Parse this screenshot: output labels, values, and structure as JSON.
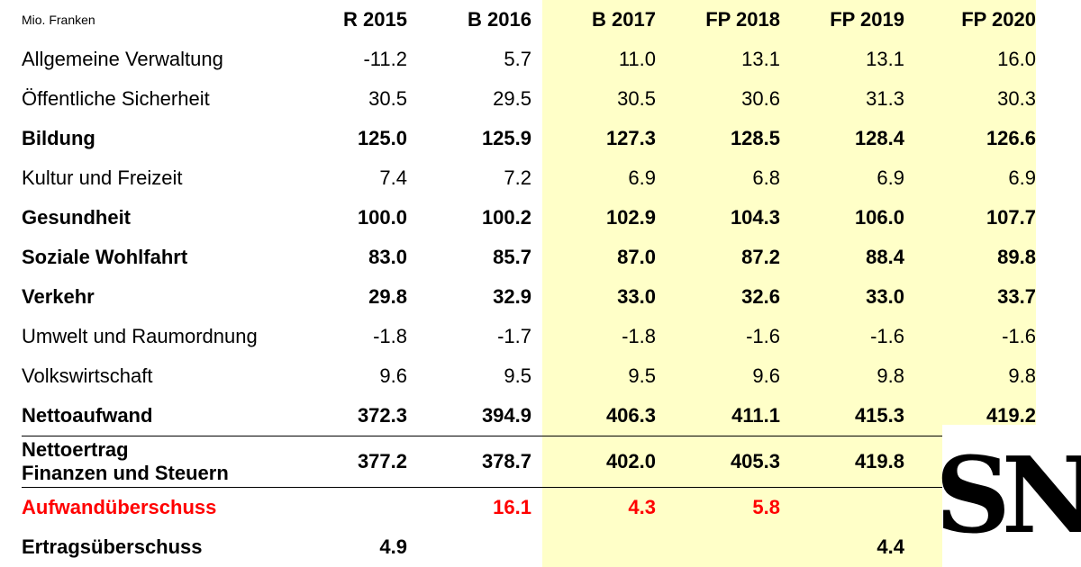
{
  "header": {
    "unit": "Mio. Franken",
    "years": [
      "R 2015",
      "B 2016",
      "B 2017",
      "FP 2018",
      "FP 2019",
      "FP 2020"
    ]
  },
  "rows": [
    {
      "label": "Allgemeine Verwaltung",
      "values": [
        "-11.2",
        "5.7",
        "11.0",
        "13.1",
        "13.1",
        "16.0"
      ]
    },
    {
      "label": "Öffentliche Sicherheit",
      "values": [
        "30.5",
        "29.5",
        "30.5",
        "30.6",
        "31.3",
        "30.3"
      ]
    },
    {
      "label": "Bildung",
      "values": [
        "125.0",
        "125.9",
        "127.3",
        "128.5",
        "128.4",
        "126.6"
      ]
    },
    {
      "label": "Kultur und Freizeit",
      "values": [
        "7.4",
        "7.2",
        "6.9",
        "6.8",
        "6.9",
        "6.9"
      ]
    },
    {
      "label": "Gesundheit",
      "values": [
        "100.0",
        "100.2",
        "102.9",
        "104.3",
        "106.0",
        "107.7"
      ]
    },
    {
      "label": "Soziale Wohlfahrt",
      "values": [
        "83.0",
        "85.7",
        "87.0",
        "87.2",
        "88.4",
        "89.8"
      ]
    },
    {
      "label": "Verkehr",
      "values": [
        "29.8",
        "32.9",
        "33.0",
        "32.6",
        "33.0",
        "33.7"
      ]
    },
    {
      "label": "Umwelt und Raumordnung",
      "values": [
        "-1.8",
        "-1.7",
        "-1.8",
        "-1.6",
        "-1.6",
        "-1.6"
      ]
    },
    {
      "label": "Volkswirtschaft",
      "values": [
        "9.6",
        "9.5",
        "9.5",
        "9.6",
        "9.8",
        "9.8"
      ]
    },
    {
      "label": "Nettoaufwand",
      "values": [
        "372.3",
        "394.9",
        "406.3",
        "411.1",
        "415.3",
        "419.2"
      ]
    },
    {
      "label_line1": "Nettoertrag",
      "label_line2": "Finanzen und Steuern",
      "values": [
        "377.2",
        "378.7",
        "402.0",
        "405.3",
        "419.8",
        ""
      ]
    },
    {
      "label": "Aufwandüberschuss",
      "values": [
        "",
        "16.1",
        "4.3",
        "5.8",
        "",
        ""
      ]
    },
    {
      "label": "Ertragsüberschuss",
      "values": [
        "4.9",
        "",
        "",
        "",
        "4.4",
        ""
      ]
    }
  ],
  "colors": {
    "highlight": "#ffffc8",
    "deficit": "#ff0000"
  },
  "logo": {
    "text": "SN"
  }
}
